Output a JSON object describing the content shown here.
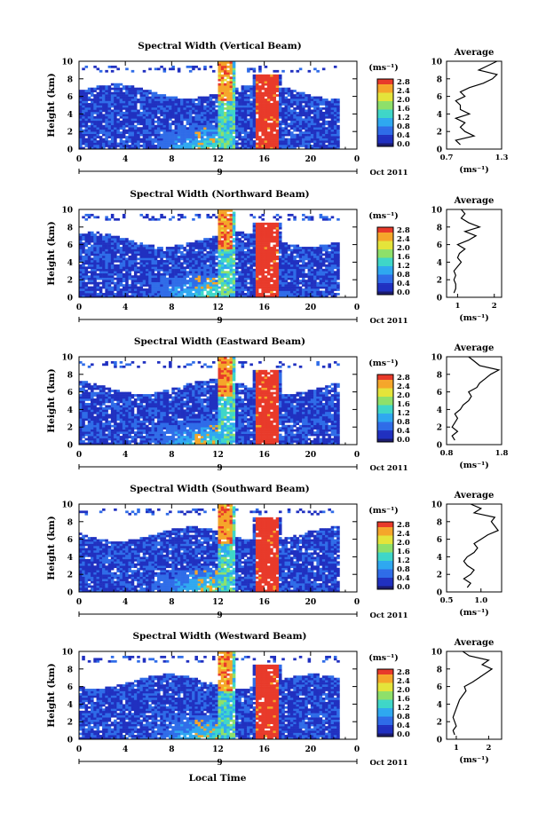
{
  "figure": {
    "xlabel": "Local Time",
    "ylabel": "Height (km)",
    "date_label": "Oct 2011",
    "day_label": "9",
    "colorbar_unit": "(ms⁻¹)",
    "colorbar_ticks": [
      "0.0",
      "0.4",
      "0.8",
      "1.2",
      "1.6",
      "2.0",
      "2.4",
      "2.8"
    ],
    "x_ticks": [
      "0",
      "4",
      "8",
      "12",
      "16",
      "20",
      "0"
    ],
    "y_ticks": [
      "0",
      "2",
      "4",
      "6",
      "8",
      "10"
    ],
    "avg_title": "Average",
    "avg_unit": "(ms⁻¹)",
    "colors": {
      "background_band": "#2a4fd6",
      "high_band": "#e83a2a",
      "colormap": [
        "#1a1a6e",
        "#2030c0",
        "#2f6ce8",
        "#2fa8f0",
        "#3fd6c8",
        "#8ee06a",
        "#e4e43a",
        "#f5a62a",
        "#e83a2a"
      ]
    }
  },
  "chart_data": [
    {
      "type": "heatmap",
      "title": "Spectral Width (Vertical Beam)",
      "xlim": [
        0,
        24
      ],
      "ylim": [
        0,
        10
      ],
      "clim": [
        0.0,
        3.0
      ],
      "avg_profile": {
        "xlim": [
          0.7,
          1.3
        ],
        "xticks": [
          "0.7",
          "1.3"
        ],
        "height": [
          0.5,
          1,
          1.5,
          2,
          2.5,
          3,
          3.5,
          4,
          4.5,
          5,
          5.5,
          6,
          6.5,
          7,
          7.5,
          8,
          8.5,
          9,
          9.5,
          10
        ],
        "value": [
          0.85,
          0.8,
          1.0,
          0.9,
          0.85,
          0.9,
          0.8,
          0.95,
          0.85,
          0.85,
          0.8,
          0.9,
          0.85,
          0.95,
          1.1,
          1.2,
          1.25,
          1.05,
          1.15,
          1.25
        ]
      }
    },
    {
      "type": "heatmap",
      "title": "Spectral Width (Northward Beam)",
      "xlim": [
        0,
        24
      ],
      "ylim": [
        0,
        10
      ],
      "clim": [
        0.0,
        3.0
      ],
      "avg_profile": {
        "xlim": [
          0.7,
          2.2
        ],
        "xticks": [
          "1",
          "2"
        ],
        "height": [
          0.5,
          1,
          1.5,
          2,
          2.5,
          3,
          3.5,
          4,
          4.5,
          5,
          5.5,
          6,
          6.5,
          7,
          7.5,
          8,
          8.5,
          9,
          9.5,
          10
        ],
        "value": [
          0.9,
          0.95,
          0.95,
          0.9,
          0.95,
          0.9,
          1.0,
          1.1,
          1.0,
          1.05,
          1.2,
          1.0,
          1.3,
          1.5,
          1.2,
          1.6,
          1.3,
          1.1,
          1.2,
          1.1
        ]
      }
    },
    {
      "type": "heatmap",
      "title": "Spectral Width (Eastward Beam)",
      "xlim": [
        0,
        24
      ],
      "ylim": [
        0,
        10
      ],
      "clim": [
        0.0,
        3.0
      ],
      "avg_profile": {
        "xlim": [
          0.8,
          1.8
        ],
        "xticks": [
          "0.8",
          "1.8"
        ],
        "height": [
          0.5,
          1,
          1.5,
          2,
          2.5,
          3,
          3.5,
          4,
          4.5,
          5,
          5.5,
          6,
          6.5,
          7,
          7.5,
          8,
          8.5,
          9,
          9.5,
          10
        ],
        "value": [
          0.95,
          0.9,
          1.0,
          0.9,
          0.95,
          1.0,
          0.95,
          1.05,
          1.1,
          1.2,
          1.25,
          1.2,
          1.35,
          1.4,
          1.5,
          1.6,
          1.75,
          1.4,
          1.3,
          1.2
        ]
      }
    },
    {
      "type": "heatmap",
      "title": "Spectral Width (Southward Beam)",
      "xlim": [
        0,
        24
      ],
      "ylim": [
        0,
        10
      ],
      "clim": [
        0.0,
        3.0
      ],
      "avg_profile": {
        "xlim": [
          0.5,
          1.3
        ],
        "xticks": [
          "0.5",
          "1.0"
        ],
        "height": [
          0.5,
          1,
          1.5,
          2,
          2.5,
          3,
          3.5,
          4,
          4.5,
          5,
          5.5,
          6,
          6.5,
          7,
          7.5,
          8,
          8.5,
          9,
          9.5,
          10
        ],
        "value": [
          0.8,
          0.85,
          0.75,
          0.85,
          0.9,
          0.8,
          0.75,
          0.8,
          0.9,
          0.95,
          0.9,
          1.0,
          1.1,
          1.25,
          1.2,
          1.15,
          1.2,
          0.9,
          1.0,
          0.85
        ]
      }
    },
    {
      "type": "heatmap",
      "title": "Spectral Width (Westward Beam)",
      "xlim": [
        0,
        24
      ],
      "ylim": [
        0,
        10
      ],
      "clim": [
        0.0,
        3.0
      ],
      "avg_profile": {
        "xlim": [
          0.7,
          2.4
        ],
        "xticks": [
          "1",
          "2"
        ],
        "height": [
          0.5,
          1,
          1.5,
          2,
          2.5,
          3,
          3.5,
          4,
          4.5,
          5,
          5.5,
          6,
          6.5,
          7,
          7.5,
          8,
          8.5,
          9,
          9.5,
          10
        ],
        "value": [
          0.95,
          0.9,
          1.0,
          0.95,
          0.9,
          0.95,
          1.0,
          1.05,
          1.1,
          1.2,
          1.3,
          1.25,
          1.5,
          1.7,
          1.9,
          2.1,
          1.8,
          2.0,
          1.4,
          1.2
        ]
      }
    }
  ]
}
